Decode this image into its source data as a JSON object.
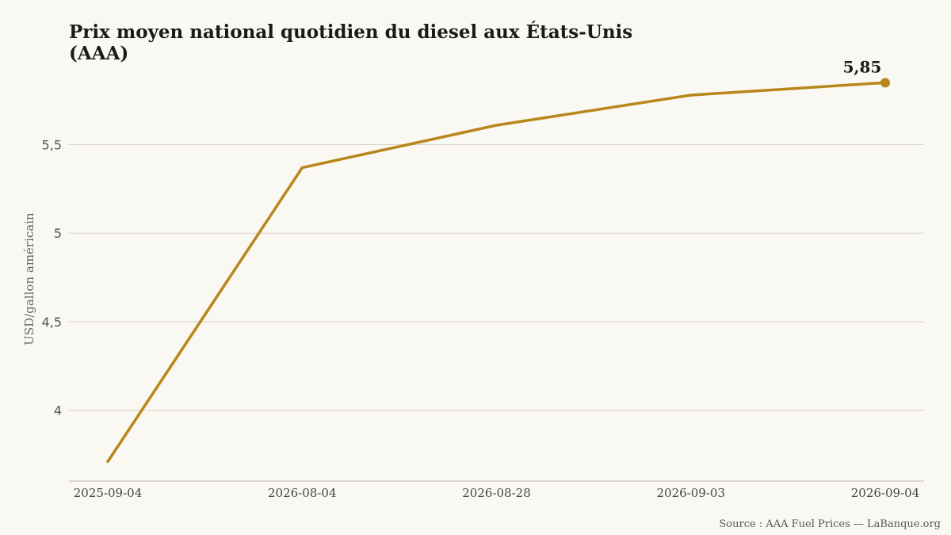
{
  "chart_data": {
    "type": "line",
    "title_lines": [
      "Prix moyen national quotidien du diesel aux États-Unis",
      "(AAA)"
    ],
    "ylabel": "USD/gallon américain",
    "x": [
      "2025-09-04",
      "2026-08-04",
      "2026-08-28",
      "2026-09-03",
      "2026-09-04"
    ],
    "y": [
      3.71,
      5.37,
      5.61,
      5.78,
      5.85
    ],
    "ylim": [
      3.6,
      5.95
    ],
    "yticks": [
      4,
      4.5,
      5,
      5.5
    ],
    "ytick_labels": [
      "4",
      "4,5",
      "5",
      "5,5"
    ],
    "x_scale": "categorical (evenly spaced)",
    "grid": "horizontal",
    "line_color": "#b8861b",
    "end_label": "5,85",
    "source": "Source : AAA Fuel Prices — LaBanque.org"
  }
}
